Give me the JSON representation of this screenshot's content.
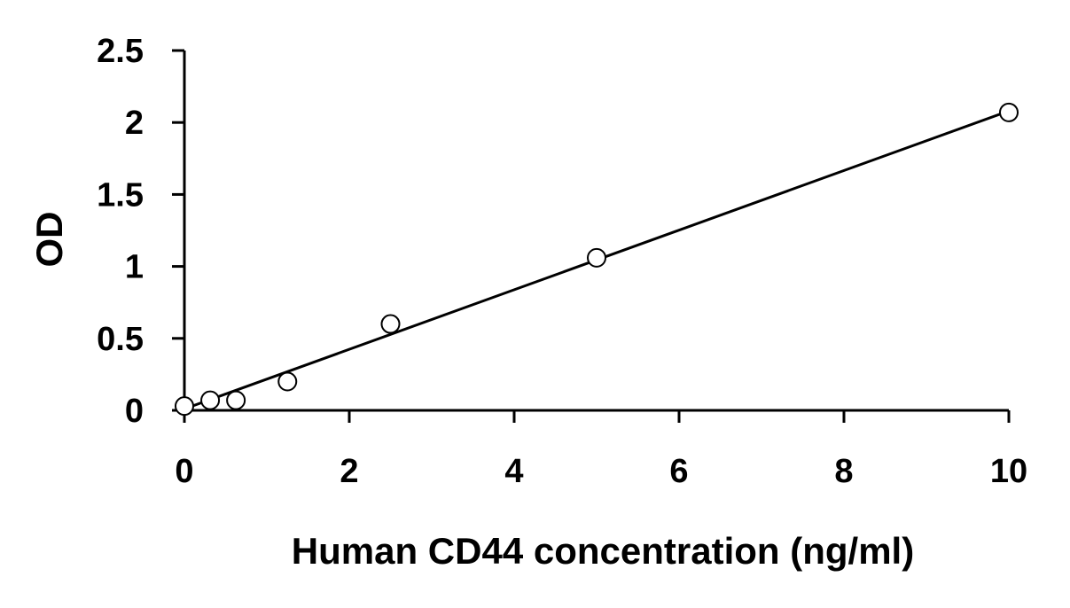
{
  "chart_data": {
    "type": "scatter",
    "title": "",
    "xlabel": "Human CD44 concentration (ng/ml)",
    "ylabel": "OD",
    "xlim": [
      0,
      10
    ],
    "ylim": [
      0,
      2.5
    ],
    "x_ticks": [
      "0",
      "2",
      "4",
      "6",
      "8",
      "10"
    ],
    "y_ticks": [
      "0",
      "0.5",
      "1",
      "1.5",
      "2",
      "2.5"
    ],
    "grid": false,
    "legend": "none",
    "series": [
      {
        "x": [
          0,
          0.3125,
          0.625,
          1.25,
          2.5,
          5,
          10
        ],
        "y": [
          0.03,
          0.07,
          0.07,
          0.2,
          0.6,
          1.06,
          2.07
        ]
      }
    ],
    "trendline": {
      "type": "linear",
      "x": [
        0,
        10
      ],
      "y": [
        0.01,
        2.08
      ]
    },
    "colors": {
      "axis": "#000000",
      "marker_fill": "#ffffff",
      "marker_stroke": "#000000"
    }
  }
}
